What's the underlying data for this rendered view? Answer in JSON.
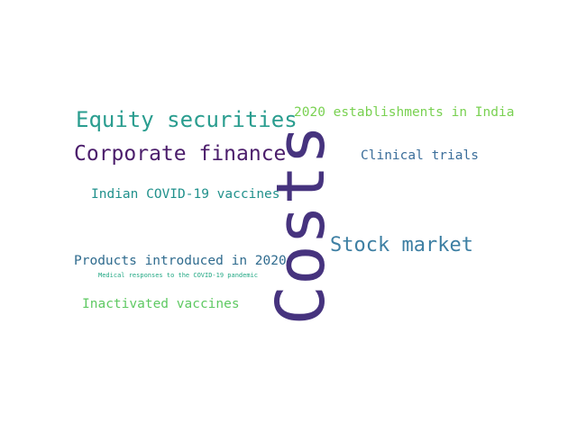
{
  "word_cloud": {
    "words": [
      {
        "id": "costs",
        "text": "Costs",
        "color": "#46337e",
        "orientation": "vertical"
      },
      {
        "id": "equity-securities",
        "text": "Equity securities",
        "color": "#2a9d8f"
      },
      {
        "id": "corporate-finance",
        "text": "Corporate finance",
        "color": "#4b1d6b"
      },
      {
        "id": "establishments-2020-india",
        "text": "2020 establishments in India",
        "color": "#79d151"
      },
      {
        "id": "clinical-trials",
        "text": "Clinical trials",
        "color": "#3b6e9a"
      },
      {
        "id": "indian-covid19-vaccines",
        "text": "Indian COVID-19 vaccines",
        "color": "#21918c"
      },
      {
        "id": "stock-market",
        "text": "Stock market",
        "color": "#3d7fa3"
      },
      {
        "id": "products-introduced-2020",
        "text": "Products introduced in 2020",
        "color": "#2f6b8e"
      },
      {
        "id": "medical-responses-covid19",
        "text": "Medical responses to the COVID-19 pandemic",
        "color": "#22a884"
      },
      {
        "id": "inactivated-vaccines",
        "text": "Inactivated vaccines",
        "color": "#5ec962"
      }
    ]
  }
}
